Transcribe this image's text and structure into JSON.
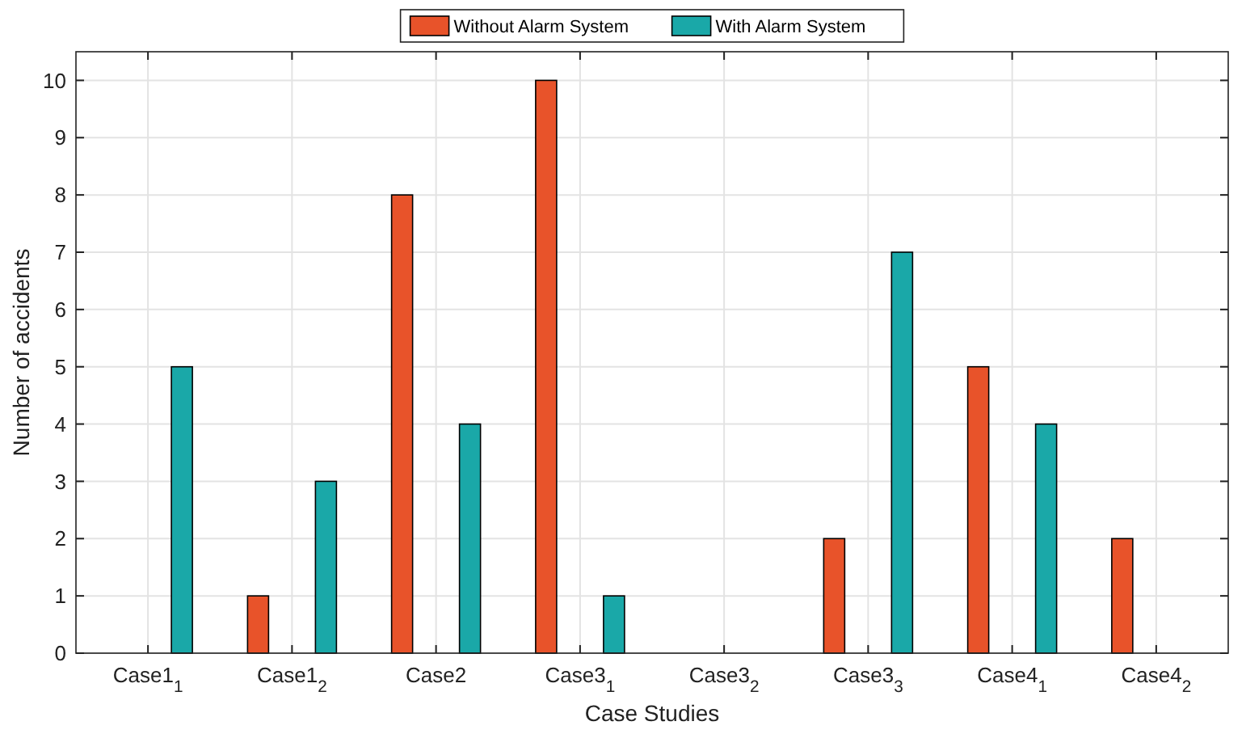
{
  "chart_data": {
    "type": "bar",
    "xlabel": "Case Studies",
    "ylabel": "Number of accidents",
    "categories": [
      "Case1$_{1}$",
      "Case1$_{2}$",
      "Case2",
      "Case3$_{1}$",
      "Case3$_{2}$",
      "Case3$_{3}$",
      "Case4$_{1}$",
      "Case4$_{2}$"
    ],
    "series": [
      {
        "name": "Without Alarm System",
        "color": "#e8532a",
        "values": [
          0,
          1,
          8,
          10,
          0,
          2,
          5,
          2
        ]
      },
      {
        "name": "With Alarm System",
        "color": "#1aa8a8",
        "values": [
          5,
          3,
          4,
          1,
          0,
          7,
          4,
          0
        ]
      }
    ],
    "ylim": [
      0,
      10.5
    ],
    "yticks": [
      0,
      1,
      2,
      3,
      4,
      5,
      6,
      7,
      8,
      9,
      10
    ],
    "grid": true,
    "legend": "top"
  }
}
